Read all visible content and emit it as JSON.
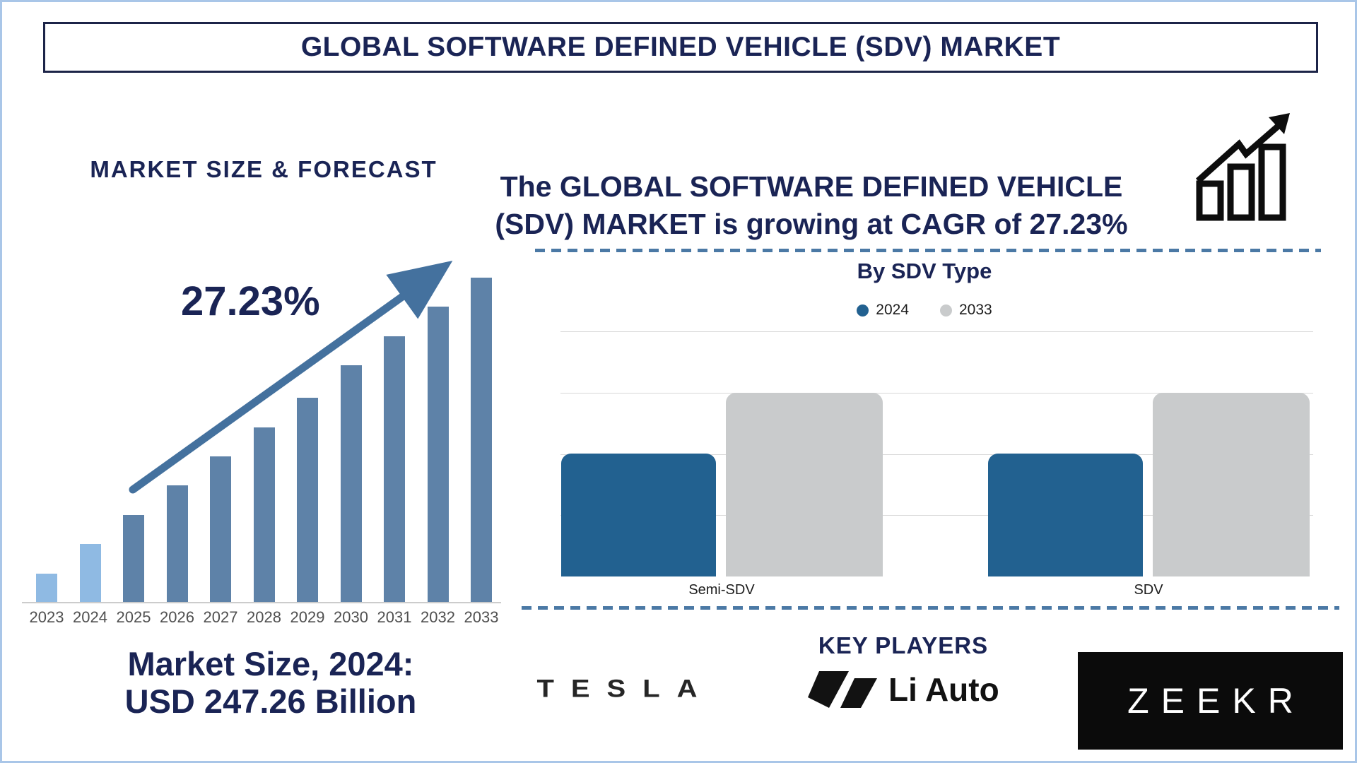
{
  "colors": {
    "navy": "#1a2455",
    "page_border": "#a9c6e8",
    "title_box_border": "#1c2448",
    "light_blue_bar": "#8fbae3",
    "steel_bar": "#5e82a8",
    "arrow": "#44719e",
    "dashed_line": "#4b79a5",
    "deep_blue_bar": "#226190",
    "gray_bar": "#c9cbcc",
    "gridline": "#d9d9d9",
    "axis_line": "#cccccc",
    "year_label": "#4f4f4f",
    "category_label": "#1d1d1d",
    "logo_black": "#121212",
    "zeekr_bg": "#0b0b0b",
    "zeekr_text": "#ffffff"
  },
  "header": {
    "title": "GLOBAL SOFTWARE DEFINED VEHICLE (SDV) MARKET"
  },
  "forecast_section": {
    "heading": "MARKET SIZE & FORECAST",
    "cagr_label": "27.23%",
    "caption_line1": "Market Size, 2024:",
    "caption_line2": "USD 247.26 Billion"
  },
  "growth_note": {
    "line1": "The GLOBAL SOFTWARE DEFINED VEHICLE",
    "line2": "(SDV) MARKET is growing at CAGR of 27.23%"
  },
  "sdv_type_section": {
    "title": "By SDV Type",
    "legend": [
      {
        "label": "2024",
        "color": "#226190"
      },
      {
        "label": "2033",
        "color": "#c9cbcc"
      }
    ]
  },
  "key_players": {
    "heading": "KEY PLAYERS",
    "players": [
      {
        "name": "TESLA"
      },
      {
        "name": "Li Auto"
      },
      {
        "name": "ZEEKR"
      }
    ]
  },
  "icons": [
    "growth-trend-icon",
    "cagr-arrow-icon",
    "tesla-wordmark",
    "liauto-mark"
  ],
  "chart_data": [
    {
      "type": "bar",
      "title": "MARKET SIZE & FORECAST",
      "categories": [
        "2023",
        "2024",
        "2025",
        "2026",
        "2027",
        "2028",
        "2029",
        "2030",
        "2031",
        "2032",
        "2033"
      ],
      "values_relative_pct": [
        9,
        18,
        27,
        36,
        45,
        54,
        63,
        73,
        82,
        91,
        100
      ],
      "highlight_value": {
        "year": "2024",
        "label": "USD 247.26 Billion",
        "value_usd_billion": 247.26
      },
      "cagr_pct": 27.23,
      "annotation": "27.23%",
      "bar_colors": {
        "2023": "#8fbae3",
        "2024": "#8fbae3",
        "2025_to_2033": "#5e82a8"
      },
      "xlabel": "",
      "ylabel": "",
      "value_axis_visible": false,
      "grid": false
    },
    {
      "type": "bar",
      "title": "By SDV Type",
      "categories": [
        "Semi-SDV",
        "SDV"
      ],
      "series": [
        {
          "name": "2024",
          "color": "#226190",
          "values_relative_pct": [
            50,
            50
          ]
        },
        {
          "name": "2033",
          "color": "#c9cbcc",
          "values_relative_pct": [
            75,
            75
          ]
        }
      ],
      "legend_position": "top",
      "grid": true,
      "value_axis_visible": false
    }
  ]
}
